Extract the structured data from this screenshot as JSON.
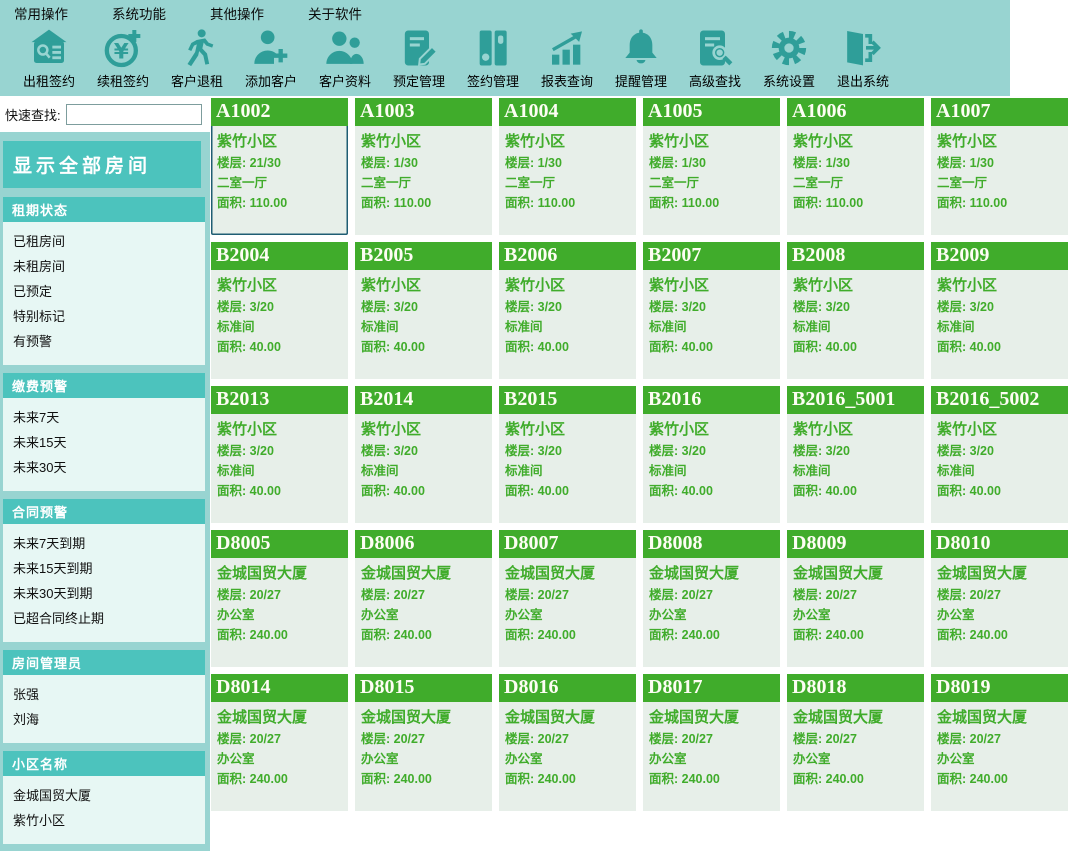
{
  "colors": {
    "chrome_teal": "#98d4d1",
    "icon_teal": "#2f9e99",
    "accent_teal": "#4cc3bd",
    "panel_bg": "#e7f7f4",
    "card_green": "#40ac2b",
    "card_body_bg": "#e7efe9",
    "selected_border": "#1f5d73"
  },
  "menubar": {
    "items": [
      "常用操作",
      "系统功能",
      "其他操作",
      "关于软件"
    ]
  },
  "toolbar": {
    "buttons": [
      {
        "label": "出租签约",
        "icon": "rent-sign-icon"
      },
      {
        "label": "续租签约",
        "icon": "renew-sign-icon"
      },
      {
        "label": "客户退租",
        "icon": "checkout-icon"
      },
      {
        "label": "添加客户",
        "icon": "add-customer-icon"
      },
      {
        "label": "客户资料",
        "icon": "customer-info-icon"
      },
      {
        "label": "预定管理",
        "icon": "booking-icon"
      },
      {
        "label": "签约管理",
        "icon": "contract-icon"
      },
      {
        "label": "报表查询",
        "icon": "report-icon"
      },
      {
        "label": "提醒管理",
        "icon": "reminder-bell-icon"
      },
      {
        "label": "高级查找",
        "icon": "advanced-search-icon"
      },
      {
        "label": "系统设置",
        "icon": "settings-gear-icon"
      },
      {
        "label": "退出系统",
        "icon": "exit-icon"
      }
    ]
  },
  "sidebar": {
    "quick_find_label": "快速查找:",
    "quick_find_value": "",
    "show_all_button": "显示全部房间",
    "sections": [
      {
        "title": "租期状态",
        "items": [
          "已租房间",
          "未租房间",
          "已预定",
          "特别标记",
          "有预警"
        ]
      },
      {
        "title": "缴费预警",
        "items": [
          "未来7天",
          "未来15天",
          "未来30天"
        ]
      },
      {
        "title": "合同预警",
        "items": [
          "未来7天到期",
          "未来15天到期",
          "未来30天到期",
          "已超合同终止期"
        ]
      },
      {
        "title": "房间管理员",
        "items": [
          "张强",
          "刘海"
        ]
      },
      {
        "title": "小区名称",
        "items": [
          "金城国贸大厦",
          "紫竹小区"
        ]
      }
    ]
  },
  "rooms": {
    "labels": {
      "floor_prefix": "楼层: ",
      "area_prefix": "面积: "
    },
    "cards": [
      {
        "code": "A1002",
        "community": "紫竹小区",
        "floor": "21/30",
        "type": "二室一厅",
        "area": "110.00",
        "selected": true
      },
      {
        "code": "A1003",
        "community": "紫竹小区",
        "floor": "1/30",
        "type": "二室一厅",
        "area": "110.00",
        "selected": false
      },
      {
        "code": "A1004",
        "community": "紫竹小区",
        "floor": "1/30",
        "type": "二室一厅",
        "area": "110.00",
        "selected": false
      },
      {
        "code": "A1005",
        "community": "紫竹小区",
        "floor": "1/30",
        "type": "二室一厅",
        "area": "110.00",
        "selected": false
      },
      {
        "code": "A1006",
        "community": "紫竹小区",
        "floor": "1/30",
        "type": "二室一厅",
        "area": "110.00",
        "selected": false
      },
      {
        "code": "A1007",
        "community": "紫竹小区",
        "floor": "1/30",
        "type": "二室一厅",
        "area": "110.00",
        "selected": false
      },
      {
        "code": "B2004",
        "community": "紫竹小区",
        "floor": "3/20",
        "type": "标准间",
        "area": "40.00",
        "selected": false
      },
      {
        "code": "B2005",
        "community": "紫竹小区",
        "floor": "3/20",
        "type": "标准间",
        "area": "40.00",
        "selected": false
      },
      {
        "code": "B2006",
        "community": "紫竹小区",
        "floor": "3/20",
        "type": "标准间",
        "area": "40.00",
        "selected": false
      },
      {
        "code": "B2007",
        "community": "紫竹小区",
        "floor": "3/20",
        "type": "标准间",
        "area": "40.00",
        "selected": false
      },
      {
        "code": "B2008",
        "community": "紫竹小区",
        "floor": "3/20",
        "type": "标准间",
        "area": "40.00",
        "selected": false
      },
      {
        "code": "B2009",
        "community": "紫竹小区",
        "floor": "3/20",
        "type": "标准间",
        "area": "40.00",
        "selected": false
      },
      {
        "code": "B2013",
        "community": "紫竹小区",
        "floor": "3/20",
        "type": "标准间",
        "area": "40.00",
        "selected": false
      },
      {
        "code": "B2014",
        "community": "紫竹小区",
        "floor": "3/20",
        "type": "标准间",
        "area": "40.00",
        "selected": false
      },
      {
        "code": "B2015",
        "community": "紫竹小区",
        "floor": "3/20",
        "type": "标准间",
        "area": "40.00",
        "selected": false
      },
      {
        "code": "B2016",
        "community": "紫竹小区",
        "floor": "3/20",
        "type": "标准间",
        "area": "40.00",
        "selected": false
      },
      {
        "code": "B2016_5001",
        "community": "紫竹小区",
        "floor": "3/20",
        "type": "标准间",
        "area": "40.00",
        "selected": false
      },
      {
        "code": "B2016_5002",
        "community": "紫竹小区",
        "floor": "3/20",
        "type": "标准间",
        "area": "40.00",
        "selected": false
      },
      {
        "code": "D8005",
        "community": "金城国贸大厦",
        "floor": "20/27",
        "type": "办公室",
        "area": "240.00",
        "selected": false
      },
      {
        "code": "D8006",
        "community": "金城国贸大厦",
        "floor": "20/27",
        "type": "办公室",
        "area": "240.00",
        "selected": false
      },
      {
        "code": "D8007",
        "community": "金城国贸大厦",
        "floor": "20/27",
        "type": "办公室",
        "area": "240.00",
        "selected": false
      },
      {
        "code": "D8008",
        "community": "金城国贸大厦",
        "floor": "20/27",
        "type": "办公室",
        "area": "240.00",
        "selected": false
      },
      {
        "code": "D8009",
        "community": "金城国贸大厦",
        "floor": "20/27",
        "type": "办公室",
        "area": "240.00",
        "selected": false
      },
      {
        "code": "D8010",
        "community": "金城国贸大厦",
        "floor": "20/27",
        "type": "办公室",
        "area": "240.00",
        "selected": false
      },
      {
        "code": "D8014",
        "community": "金城国贸大厦",
        "floor": "20/27",
        "type": "办公室",
        "area": "240.00",
        "selected": false
      },
      {
        "code": "D8015",
        "community": "金城国贸大厦",
        "floor": "20/27",
        "type": "办公室",
        "area": "240.00",
        "selected": false
      },
      {
        "code": "D8016",
        "community": "金城国贸大厦",
        "floor": "20/27",
        "type": "办公室",
        "area": "240.00",
        "selected": false
      },
      {
        "code": "D8017",
        "community": "金城国贸大厦",
        "floor": "20/27",
        "type": "办公室",
        "area": "240.00",
        "selected": false
      },
      {
        "code": "D8018",
        "community": "金城国贸大厦",
        "floor": "20/27",
        "type": "办公室",
        "area": "240.00",
        "selected": false
      },
      {
        "code": "D8019",
        "community": "金城国贸大厦",
        "floor": "20/27",
        "type": "办公室",
        "area": "240.00",
        "selected": false
      }
    ]
  }
}
